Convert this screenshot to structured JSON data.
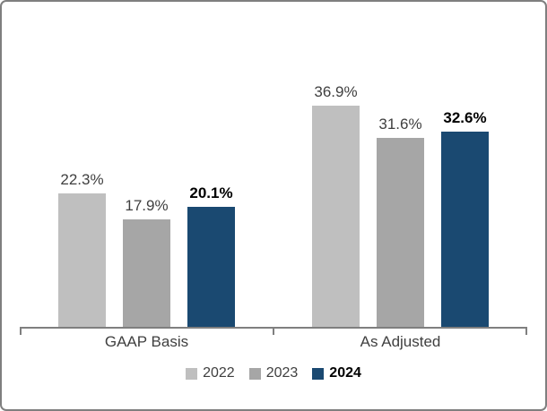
{
  "chart_data": {
    "type": "bar",
    "title": "",
    "xlabel": "",
    "ylabel": "",
    "value_suffix": "%",
    "ylim": [
      0,
      50
    ],
    "grid": false,
    "legend_position": "bottom",
    "categories": [
      "GAAP Basis",
      "As Adjusted"
    ],
    "series": [
      {
        "name": "2022",
        "values": [
          22.3,
          36.9
        ],
        "labels": [
          "22.3%",
          "36.9%"
        ],
        "color": "#bfbfbf",
        "bold": false
      },
      {
        "name": "2023",
        "values": [
          17.9,
          31.6
        ],
        "labels": [
          "17.9%",
          "31.6%"
        ],
        "color": "#a6a6a6",
        "bold": false
      },
      {
        "name": "2024",
        "values": [
          20.1,
          32.6
        ],
        "labels": [
          "20.1%",
          "32.6%"
        ],
        "color": "#1a4971",
        "bold": true
      }
    ]
  },
  "frame": {
    "border_color": "#7f7f7f",
    "background": "#ffffff"
  }
}
